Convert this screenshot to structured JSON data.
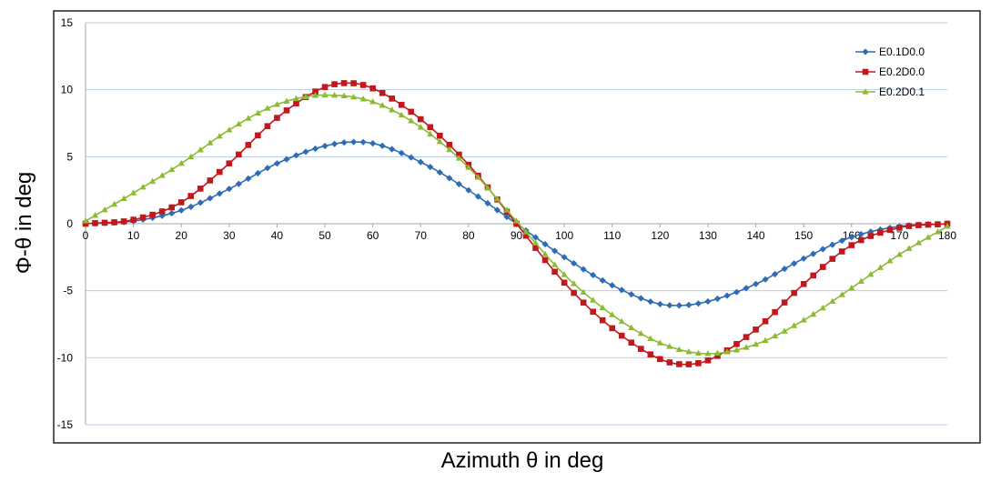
{
  "chart_data": {
    "type": "line",
    "xlabel": "Azimuth θ in deg",
    "ylabel": "Φ-θ in deg",
    "xlim": [
      0,
      180
    ],
    "ylim": [
      -15,
      15
    ],
    "x_ticks": [
      0,
      10,
      20,
      30,
      40,
      50,
      60,
      70,
      80,
      90,
      100,
      110,
      120,
      130,
      140,
      150,
      160,
      170,
      180
    ],
    "y_ticks": [
      15,
      10,
      5,
      0,
      -5,
      -10,
      -15
    ],
    "grid": "horizontal",
    "legend_position": "top-right",
    "series": [
      {
        "name": "E0.1D0.0",
        "color": "#2E6DB4",
        "marker": "diamond",
        "x": [
          0,
          10,
          20,
          30,
          40,
          50,
          56,
          60,
          70,
          80,
          90,
          100,
          110,
          120,
          124,
          130,
          140,
          150,
          160,
          170,
          180
        ],
        "y": [
          0,
          0.2,
          1.0,
          2.6,
          4.5,
          5.8,
          6.1,
          6.0,
          4.6,
          2.5,
          0,
          -2.5,
          -4.6,
          -6.0,
          -6.1,
          -5.8,
          -4.5,
          -2.6,
          -1.0,
          -0.2,
          0
        ]
      },
      {
        "name": "E0.2D0.0",
        "color": "#C0181C",
        "marker": "square",
        "x": [
          0,
          10,
          20,
          30,
          40,
          50,
          55,
          60,
          70,
          80,
          90,
          100,
          110,
          120,
          125,
          130,
          140,
          150,
          160,
          170,
          180
        ],
        "y": [
          0,
          0.3,
          1.6,
          4.5,
          7.9,
          10.2,
          10.5,
          10.1,
          7.8,
          4.4,
          0,
          -4.4,
          -7.8,
          -10.1,
          -10.5,
          -10.2,
          -7.9,
          -4.5,
          -1.6,
          -0.3,
          0
        ]
      },
      {
        "name": "E0.2D0.1",
        "color": "#8CBA31",
        "marker": "triangle",
        "x": [
          0,
          10,
          20,
          30,
          40,
          50,
          60,
          70,
          80,
          90,
          100,
          110,
          120,
          130,
          140,
          150,
          160,
          170,
          180
        ],
        "y": [
          0.2,
          2.3,
          4.5,
          7.0,
          8.9,
          9.6,
          9.1,
          7.2,
          4.2,
          0.2,
          -3.8,
          -6.8,
          -8.9,
          -9.7,
          -9.0,
          -7.2,
          -4.8,
          -2.3,
          -0.2
        ]
      }
    ]
  }
}
